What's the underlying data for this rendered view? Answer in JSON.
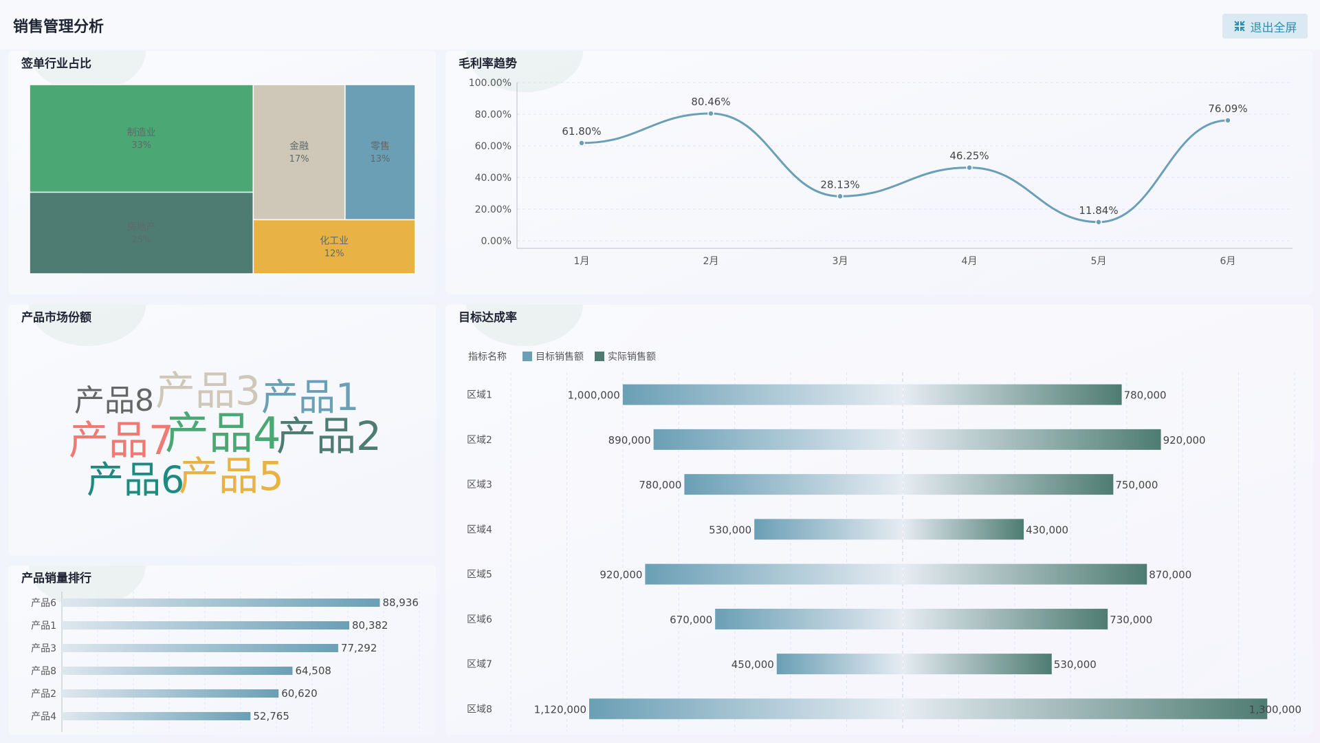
{
  "header": {
    "title": "销售管理分析",
    "exit_label": "退出全屏"
  },
  "panels": {
    "industry": "签单行业占比",
    "margin": "毛利率趋势",
    "market": "产品市场份额",
    "ranking": "产品销量排行",
    "target": "目标达成率"
  },
  "colors": {
    "steel": "#6a9fb5",
    "dark_teal": "#4e7c72",
    "green": "#4ba774",
    "beige": "#cfc8b9",
    "mustard": "#e8b244",
    "accent": "#2e8fb0"
  },
  "chart_data": [
    {
      "id": "industry-treemap",
      "type": "treemap",
      "title": "签单行业占比",
      "items": [
        {
          "label": "制造业",
          "value": 33,
          "text": "33%",
          "color": "#4ba774"
        },
        {
          "label": "房地产",
          "value": 25,
          "text": "25%",
          "color": "#4e7c72"
        },
        {
          "label": "金融",
          "value": 17,
          "text": "17%",
          "color": "#cfc8b9"
        },
        {
          "label": "零售",
          "value": 13,
          "text": "13%",
          "color": "#6a9fb5"
        },
        {
          "label": "化工业",
          "value": 12,
          "text": "12%",
          "color": "#e8b244"
        }
      ]
    },
    {
      "id": "margin-trend",
      "type": "line",
      "title": "毛利率趋势",
      "categories": [
        "1月",
        "2月",
        "3月",
        "4月",
        "5月",
        "6月"
      ],
      "values": [
        61.8,
        80.46,
        28.13,
        46.25,
        11.84,
        76.09
      ],
      "value_labels": [
        "61.80%",
        "80.46%",
        "28.13%",
        "46.25%",
        "11.84%",
        "76.09%"
      ],
      "yticks": [
        0,
        20,
        40,
        60,
        80,
        100
      ],
      "ytick_labels": [
        "0.00%",
        "20.00%",
        "40.00%",
        "60.00%",
        "80.00%",
        "100.00%"
      ],
      "ylim": [
        0,
        100
      ],
      "smooth": true
    },
    {
      "id": "market-share",
      "type": "wordcloud",
      "title": "产品市场份额",
      "words": [
        {
          "text": "产品8",
          "color": "#666666"
        },
        {
          "text": "产品3",
          "color": "#cfc8b9"
        },
        {
          "text": "产品1",
          "color": "#6a9fb5"
        },
        {
          "text": "产品7",
          "color": "#ee7a74"
        },
        {
          "text": "产品4",
          "color": "#4ba774"
        },
        {
          "text": "产品2",
          "color": "#4e7c72"
        },
        {
          "text": "产品6",
          "color": "#1f8a80"
        },
        {
          "text": "产品5",
          "color": "#e8b244"
        }
      ]
    },
    {
      "id": "sales-ranking",
      "type": "bar",
      "orientation": "horizontal",
      "title": "产品销量排行",
      "categories": [
        "产品6",
        "产品1",
        "产品3",
        "产品8",
        "产品2",
        "产品4"
      ],
      "values": [
        88936,
        80382,
        77292,
        64508,
        60620,
        52765
      ],
      "value_labels": [
        "88,936",
        "80,382",
        "77,292",
        "64,508",
        "60,620",
        "52,765"
      ],
      "xlim": [
        0,
        100000
      ]
    },
    {
      "id": "target-achievement",
      "type": "bar",
      "orientation": "horizontal-diverging",
      "title": "目标达成率",
      "legend_title": "指标名称",
      "legend": [
        "目标销售额",
        "实际销售额"
      ],
      "categories": [
        "区域1",
        "区域2",
        "区域3",
        "区域4",
        "区域5",
        "区域6",
        "区域7",
        "区域8"
      ],
      "series": [
        {
          "name": "目标销售额",
          "values": [
            1000000,
            890000,
            780000,
            530000,
            920000,
            670000,
            450000,
            1120000
          ],
          "labels": [
            "1,000,000",
            "890,000",
            "780,000",
            "530,000",
            "920,000",
            "670,000",
            "450,000",
            "1,120,000"
          ]
        },
        {
          "name": "实际销售额",
          "values": [
            780000,
            920000,
            750000,
            430000,
            870000,
            730000,
            530000,
            1300000
          ],
          "labels": [
            "780,000",
            "920,000",
            "750,000",
            "430,000",
            "870,000",
            "730,000",
            "530,000",
            "1,300,000"
          ]
        }
      ],
      "xlim": [
        -1400000,
        1400000
      ]
    }
  ]
}
